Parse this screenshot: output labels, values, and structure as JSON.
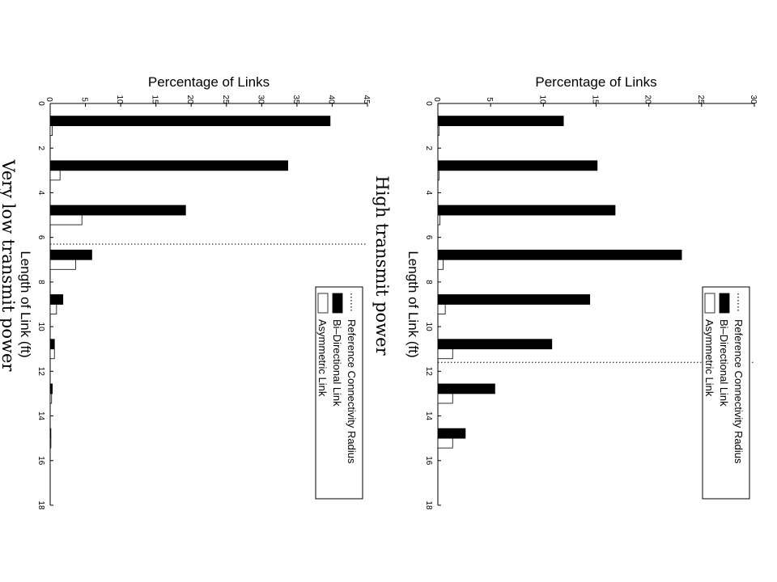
{
  "chart_data": [
    {
      "type": "bar",
      "title": "High transmit power",
      "xlabel": "Length of Link (ft)",
      "ylabel": "Percentage of Links",
      "xlim": [
        0,
        18
      ],
      "ylim": [
        0,
        30
      ],
      "x_ticks": [
        0,
        2,
        4,
        6,
        8,
        10,
        12,
        14,
        16,
        18
      ],
      "y_ticks": [
        0,
        5,
        10,
        15,
        20,
        25,
        30
      ],
      "categories": [
        1,
        3,
        5,
        7,
        9,
        11,
        13,
        15,
        17
      ],
      "series": [
        {
          "name": "Bi–Directional Link",
          "fill": "#000000",
          "values": [
            11.9,
            15.1,
            16.8,
            23.1,
            14.4,
            10.8,
            5.4,
            2.6,
            0
          ]
        },
        {
          "name": "Asymmetric Link",
          "fill": "#ffffff",
          "values": [
            0.1,
            0.1,
            0.2,
            0.5,
            0.7,
            1.4,
            1.4,
            1.4,
            0
          ]
        }
      ],
      "reference": {
        "name": "Reference Connectivity Radius",
        "x": 11.6
      },
      "legend": {
        "position": "top-right",
        "entries": [
          "Reference Connectivity Radius",
          "Bi–Directional Link",
          "Asymmetric Link"
        ]
      },
      "grid": false,
      "orientation": "rotated-90-clockwise"
    },
    {
      "type": "bar",
      "title": "Very low transmit power",
      "xlabel": "Length of Link (ft)",
      "ylabel": "Percentage of Links",
      "xlim": [
        0,
        18
      ],
      "ylim": [
        0,
        45
      ],
      "x_ticks": [
        0,
        2,
        4,
        6,
        8,
        10,
        12,
        14,
        16,
        18
      ],
      "y_ticks": [
        0,
        5,
        10,
        15,
        20,
        25,
        30,
        35,
        40,
        45
      ],
      "categories": [
        1,
        3,
        5,
        7,
        9,
        11,
        13,
        15,
        17
      ],
      "series": [
        {
          "name": "Bi–Directional Link",
          "fill": "#000000",
          "values": [
            39.7,
            33.7,
            19.2,
            5.9,
            1.8,
            0.6,
            0.3,
            0.1,
            0
          ]
        },
        {
          "name": "Asymmetric Link",
          "fill": "#ffffff",
          "values": [
            0.3,
            1.4,
            4.5,
            3.6,
            0.9,
            0.6,
            0.2,
            0.1,
            0
          ]
        }
      ],
      "reference": {
        "name": "Reference Connectivity Radius",
        "x": 6.3
      },
      "legend": {
        "position": "top-right",
        "entries": [
          "Reference Connectivity Radius",
          "Bi–Directional Link",
          "Asymmetric Link"
        ]
      },
      "grid": false,
      "orientation": "rotated-90-clockwise"
    }
  ]
}
